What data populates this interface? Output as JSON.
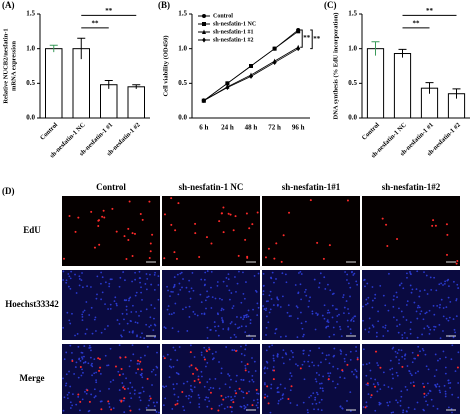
{
  "chart_data": [
    {
      "type": "bar",
      "panel_label": "(A)",
      "ylabel": [
        "Relative NUCB2/nesfatin-1",
        "mRNA expression"
      ],
      "categories": [
        "Control",
        "sh-nesfatin-1 NC",
        "sh-nesfatin-1 #1",
        "sh-nesfatin-1 #2"
      ],
      "values": [
        1.0,
        1.0,
        0.48,
        0.45
      ],
      "errors": [
        0.05,
        0.15,
        0.06,
        0.03
      ],
      "color": "#ffffff",
      "ylim": [
        0,
        1.5
      ],
      "yticks": [
        {
          "value": 0,
          "label": "0.0"
        },
        {
          "value": 0.5,
          "label": "0.5"
        },
        {
          "value": 1,
          "label": "1.0"
        },
        {
          "value": 1.5,
          "label": "1.5"
        }
      ],
      "annotations": [
        "**",
        "**"
      ]
    },
    {
      "type": "line",
      "panel_label": "(B)",
      "ylabel": [
        "Cell viability (OD450)"
      ],
      "categories": [
        "6 h",
        "24 h",
        "48 h",
        "72 h",
        "96 h"
      ],
      "series": [
        {
          "name": "Control",
          "color": "#000000",
          "marker": "circle",
          "values": [
            0.25,
            0.5,
            0.75,
            1.0,
            1.27
          ]
        },
        {
          "name": "sh-nesfatin-1 NC",
          "color": "#000000",
          "marker": "square",
          "values": [
            0.25,
            0.5,
            0.75,
            1.0,
            1.25
          ]
        },
        {
          "name": "sh-nesfatin-1 #1",
          "color": "#000000",
          "marker": "triangle",
          "values": [
            0.25,
            0.45,
            0.62,
            0.82,
            1.02
          ]
        },
        {
          "name": "sh-nesfatin-1 #2",
          "color": "#000000",
          "marker": "diamond",
          "values": [
            0.25,
            0.44,
            0.6,
            0.8,
            1.0
          ]
        }
      ],
      "ylim": [
        0,
        1.5
      ],
      "yticks": [
        {
          "value": 0,
          "label": "0.0"
        },
        {
          "value": 0.5,
          "label": "0.5"
        },
        {
          "value": 1,
          "label": "1.0"
        },
        {
          "value": 1.5,
          "label": "1.5"
        }
      ],
      "legend": "upper left",
      "annotations": [
        "**",
        "**"
      ]
    },
    {
      "type": "bar",
      "panel_label": "(C)",
      "ylabel": [
        "DNA synthesis (% EdU incorporation)"
      ],
      "categories": [
        "Control",
        "sh-nesfatin-1 NC",
        "sh-nesfatin-1 #1",
        "sh-nesfatin-1 #2"
      ],
      "values": [
        1.0,
        0.93,
        0.43,
        0.35
      ],
      "errors": [
        0.1,
        0.06,
        0.08,
        0.07
      ],
      "color": "#ffffff",
      "ylim": [
        0,
        1.5
      ],
      "yticks": [
        {
          "value": 0,
          "label": "0.0"
        },
        {
          "value": 0.5,
          "label": "0.5"
        },
        {
          "value": 1,
          "label": "1.0"
        },
        {
          "value": 1.5,
          "label": "1.5"
        }
      ],
      "annotations": [
        "**",
        "**"
      ]
    }
  ],
  "panel_d": {
    "label": "(D)",
    "columns": [
      "Control",
      "sh-nesfatin-1 NC",
      "sh-nesfatin-1#1",
      "sh-nesfatin-1#2"
    ],
    "rows": [
      "EdU",
      "Hoechst33342",
      "Merge"
    ]
  }
}
